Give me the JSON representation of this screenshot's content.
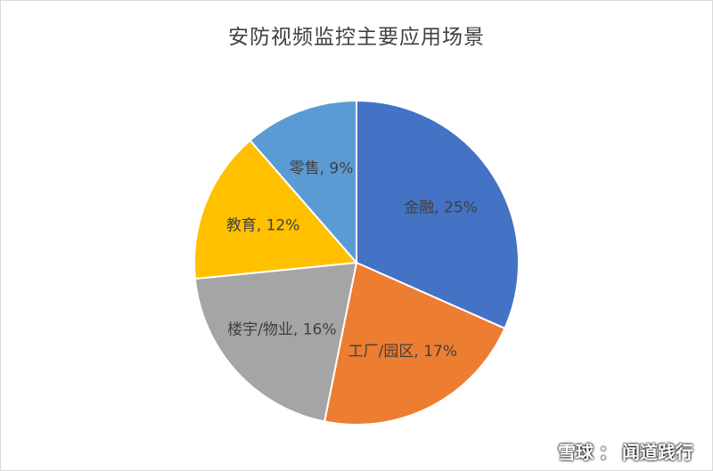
{
  "chart_data": {
    "type": "pie",
    "title": "安防视频监控主要应用场景",
    "slices": [
      {
        "label": "金融, 25%",
        "value": 25,
        "color": "#4472C4"
      },
      {
        "label": "工厂/园区, 17%",
        "value": 17,
        "color": "#ED7D31"
      },
      {
        "label": "楼宇/物业, 16%",
        "value": 16,
        "color": "#A5A5A5"
      },
      {
        "label": "教育, 12%",
        "value": 12,
        "color": "#FFC000"
      },
      {
        "label": "零售, 9%",
        "value": 9,
        "color": "#5B9BD5"
      }
    ],
    "start_angle_deg": 0,
    "direction": "clockwise"
  },
  "watermark": {
    "brand": "雪球",
    "separator": "：",
    "author": "闻道践行"
  }
}
